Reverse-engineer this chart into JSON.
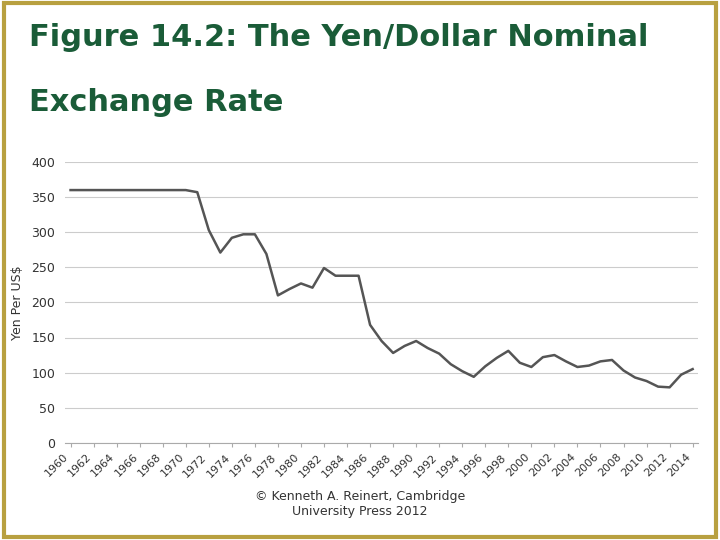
{
  "title_line1": "Figure 14.2: The Yen/Dollar Nominal",
  "title_line2": "Exchange Rate",
  "title_color": "#1a5c38",
  "ylabel": "Yen Per US$",
  "caption": "© Kenneth A. Reinert, Cambridge\nUniversity Press 2012",
  "line_color": "#555555",
  "background_color": "#ffffff",
  "border_color": "#b8a040",
  "ylim": [
    0,
    400
  ],
  "yticks": [
    0,
    50,
    100,
    150,
    200,
    250,
    300,
    350,
    400
  ],
  "years": [
    1960,
    1961,
    1962,
    1963,
    1964,
    1965,
    1966,
    1967,
    1968,
    1969,
    1970,
    1971,
    1972,
    1973,
    1974,
    1975,
    1976,
    1977,
    1978,
    1979,
    1980,
    1981,
    1982,
    1983,
    1984,
    1985,
    1986,
    1987,
    1988,
    1989,
    1990,
    1991,
    1992,
    1993,
    1994,
    1995,
    1996,
    1997,
    1998,
    1999,
    2000,
    2001,
    2002,
    2003,
    2004,
    2005,
    2006,
    2007,
    2008,
    2009,
    2010,
    2011,
    2012,
    2013,
    2014
  ],
  "values": [
    360,
    360,
    360,
    360,
    360,
    360,
    360,
    360,
    360,
    360,
    360,
    357,
    303,
    271,
    292,
    297,
    297,
    269,
    210,
    219,
    227,
    221,
    249,
    238,
    238,
    238,
    168,
    145,
    128,
    138,
    145,
    135,
    127,
    112,
    102,
    94,
    109,
    121,
    131,
    114,
    108,
    122,
    125,
    116,
    108,
    110,
    116,
    118,
    103,
    93,
    88,
    80,
    79,
    97,
    105
  ]
}
